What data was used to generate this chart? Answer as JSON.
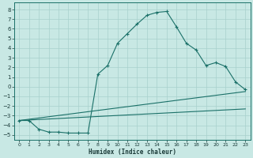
{
  "xlabel": "Humidex (Indice chaleur)",
  "xlim": [
    -0.5,
    23.5
  ],
  "ylim": [
    -5.5,
    8.7
  ],
  "xticks": [
    0,
    1,
    2,
    3,
    4,
    5,
    6,
    7,
    8,
    9,
    10,
    11,
    12,
    13,
    14,
    15,
    16,
    17,
    18,
    19,
    20,
    21,
    22,
    23
  ],
  "yticks": [
    -5,
    -4,
    -3,
    -2,
    -1,
    0,
    1,
    2,
    3,
    4,
    5,
    6,
    7,
    8
  ],
  "bg_color": "#c8e8e4",
  "grid_color": "#a8d0cc",
  "line_color": "#1a7068",
  "curve1_x": [
    0,
    1,
    2,
    3,
    4,
    5,
    6,
    7,
    8,
    9,
    10,
    11,
    12,
    13,
    14,
    15,
    16,
    17,
    18,
    19,
    20,
    21,
    22,
    23
  ],
  "curve1_y": [
    -3.5,
    -3.5,
    -4.4,
    -4.7,
    -4.7,
    -4.8,
    -4.8,
    -4.8,
    1.3,
    2.2,
    4.5,
    5.5,
    6.5,
    7.4,
    7.7,
    7.8,
    6.2,
    4.5,
    3.8,
    2.2,
    2.5,
    2.1,
    0.5,
    -0.3
  ],
  "curve2_x": [
    0,
    23
  ],
  "curve2_y": [
    -3.5,
    -0.5
  ],
  "curve3_x": [
    0,
    23
  ],
  "curve3_y": [
    -3.5,
    -2.3
  ]
}
